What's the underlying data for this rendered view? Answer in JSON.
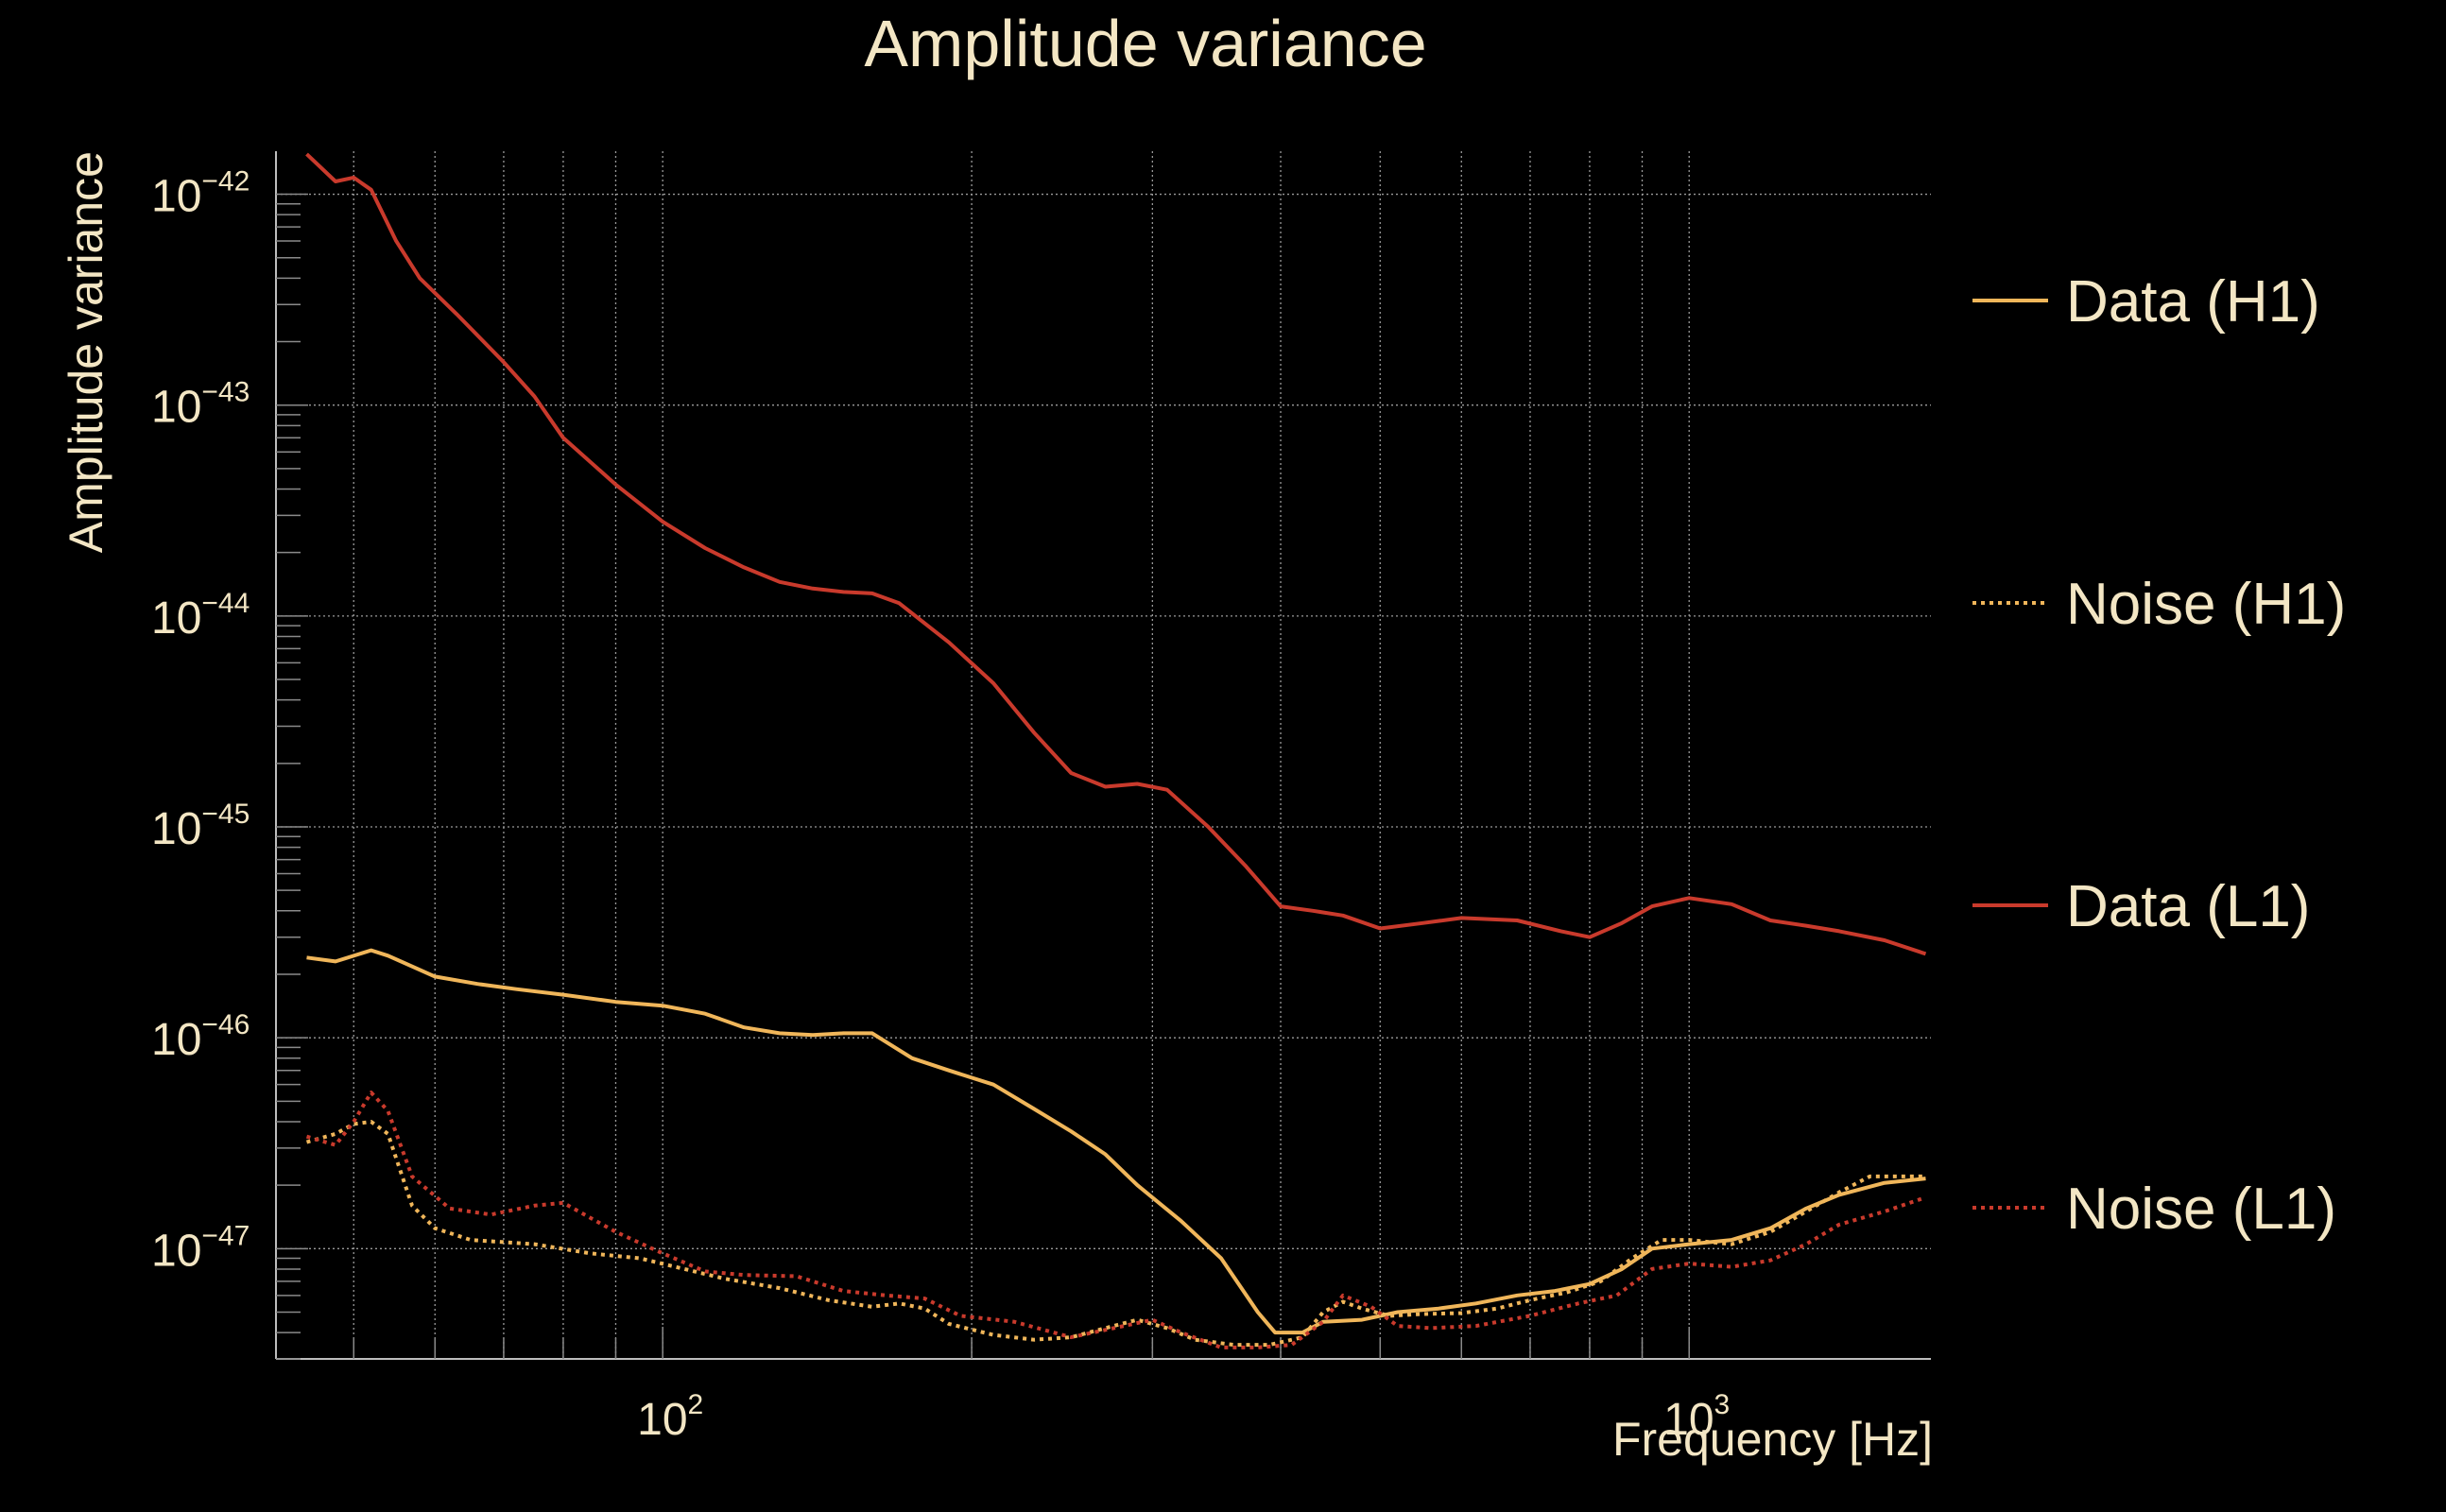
{
  "chart_data": {
    "type": "line",
    "title": "Amplitude variance",
    "xlabel": "Frequency [Hz]",
    "ylabel": "Amplitude variance",
    "x_scale": "log",
    "y_scale": "log",
    "xlim": [
      42,
      1720
    ],
    "ylim": [
      3e-48,
      1.6e-42
    ],
    "grid": true,
    "legend_placement": "right",
    "x_ticks": [
      {
        "base": "10",
        "exp": "2",
        "value": 100
      },
      {
        "base": "10",
        "exp": "3",
        "value": 1000
      }
    ],
    "y_ticks": [
      {
        "base": "10",
        "exp": "−42",
        "value": 1e-42
      },
      {
        "base": "10",
        "exp": "−43",
        "value": 1e-43
      },
      {
        "base": "10",
        "exp": "−44",
        "value": 1e-44
      },
      {
        "base": "10",
        "exp": "−45",
        "value": 1e-45
      },
      {
        "base": "10",
        "exp": "−46",
        "value": 1e-46
      },
      {
        "base": "10",
        "exp": "−47",
        "value": 1e-47
      }
    ],
    "series": [
      {
        "name": "Data (H1)",
        "color": "#f0b65a",
        "dash": "solid",
        "points": [
          [
            45,
            2.4e-46
          ],
          [
            48,
            2.3e-46
          ],
          [
            52,
            2.6e-46
          ],
          [
            54,
            2.45e-46
          ],
          [
            60,
            1.95e-46
          ],
          [
            66,
            1.8e-46
          ],
          [
            72,
            1.7e-46
          ],
          [
            80,
            1.6e-46
          ],
          [
            90,
            1.48e-46
          ],
          [
            100,
            1.42e-46
          ],
          [
            110,
            1.3e-46
          ],
          [
            120,
            1.12e-46
          ],
          [
            130,
            1.05e-46
          ],
          [
            140,
            1.03e-46
          ],
          [
            150,
            1.05e-46
          ],
          [
            160,
            1.05e-46
          ],
          [
            175,
            8e-47
          ],
          [
            190,
            7e-47
          ],
          [
            210,
            6e-47
          ],
          [
            230,
            4.6e-47
          ],
          [
            250,
            3.6e-47
          ],
          [
            270,
            2.8e-47
          ],
          [
            290,
            2e-47
          ],
          [
            320,
            1.35e-47
          ],
          [
            350,
            9e-48
          ],
          [
            380,
            5e-48
          ],
          [
            395,
            4e-48
          ],
          [
            420,
            4e-48
          ],
          [
            440,
            4.5e-48
          ],
          [
            480,
            4.6e-48
          ],
          [
            520,
            5e-48
          ],
          [
            570,
            5.2e-48
          ],
          [
            620,
            5.5e-48
          ],
          [
            680,
            6e-48
          ],
          [
            740,
            6.3e-48
          ],
          [
            800,
            6.8e-48
          ],
          [
            860,
            8e-48
          ],
          [
            920,
            1e-47
          ],
          [
            1000,
            1.05e-47
          ],
          [
            1100,
            1.1e-47
          ],
          [
            1200,
            1.25e-47
          ],
          [
            1300,
            1.55e-47
          ],
          [
            1400,
            1.8e-47
          ],
          [
            1550,
            2.05e-47
          ],
          [
            1700,
            2.15e-47
          ]
        ]
      },
      {
        "name": "Noise (H1)",
        "color": "#f0b65a",
        "dash": "dotted",
        "points": [
          [
            45,
            3.2e-47
          ],
          [
            48,
            3.5e-47
          ],
          [
            50,
            3.9e-47
          ],
          [
            52,
            4e-47
          ],
          [
            54,
            3.5e-47
          ],
          [
            57,
            1.6e-47
          ],
          [
            60,
            1.25e-47
          ],
          [
            65,
            1.1e-47
          ],
          [
            75,
            1.05e-47
          ],
          [
            85,
            9.5e-48
          ],
          [
            95,
            9e-48
          ],
          [
            105,
            8e-48
          ],
          [
            115,
            7.2e-48
          ],
          [
            130,
            6.5e-48
          ],
          [
            145,
            5.7e-48
          ],
          [
            160,
            5.3e-48
          ],
          [
            170,
            5.5e-48
          ],
          [
            180,
            5.2e-48
          ],
          [
            190,
            4.4e-48
          ],
          [
            210,
            3.9e-48
          ],
          [
            230,
            3.7e-48
          ],
          [
            250,
            3.8e-48
          ],
          [
            270,
            4.2e-48
          ],
          [
            290,
            4.6e-48
          ],
          [
            310,
            4.2e-48
          ],
          [
            330,
            3.7e-48
          ],
          [
            360,
            3.5e-48
          ],
          [
            390,
            3.5e-48
          ],
          [
            420,
            3.8e-48
          ],
          [
            440,
            5e-48
          ],
          [
            460,
            5.6e-48
          ],
          [
            480,
            5.2e-48
          ],
          [
            510,
            4.8e-48
          ],
          [
            550,
            4.9e-48
          ],
          [
            600,
            4.95e-48
          ],
          [
            650,
            5.2e-48
          ],
          [
            700,
            5.7e-48
          ],
          [
            760,
            6.2e-48
          ],
          [
            820,
            7e-48
          ],
          [
            880,
            9e-48
          ],
          [
            940,
            1.1e-47
          ],
          [
            1000,
            1.1e-47
          ],
          [
            1100,
            1.05e-47
          ],
          [
            1200,
            1.2e-47
          ],
          [
            1300,
            1.5e-47
          ],
          [
            1400,
            1.85e-47
          ],
          [
            1500,
            2.2e-47
          ],
          [
            1700,
            2.2e-47
          ]
        ]
      },
      {
        "name": "Data (L1)",
        "color": "#c93a2c",
        "dash": "solid",
        "points": [
          [
            45,
            1.55e-42
          ],
          [
            48,
            1.15e-42
          ],
          [
            50,
            1.2e-42
          ],
          [
            52,
            1.05e-42
          ],
          [
            55,
            6e-43
          ],
          [
            58,
            4e-43
          ],
          [
            63,
            2.7e-43
          ],
          [
            70,
            1.6e-43
          ],
          [
            75,
            1.1e-43
          ],
          [
            80,
            7e-44
          ],
          [
            90,
            4.2e-44
          ],
          [
            100,
            2.8e-44
          ],
          [
            110,
            2.1e-44
          ],
          [
            120,
            1.7e-44
          ],
          [
            130,
            1.45e-44
          ],
          [
            140,
            1.35e-44
          ],
          [
            150,
            1.3e-44
          ],
          [
            160,
            1.28e-44
          ],
          [
            170,
            1.15e-44
          ],
          [
            190,
            7.5e-45
          ],
          [
            210,
            4.8e-45
          ],
          [
            230,
            2.8e-45
          ],
          [
            250,
            1.8e-45
          ],
          [
            270,
            1.55e-45
          ],
          [
            290,
            1.6e-45
          ],
          [
            310,
            1.5e-45
          ],
          [
            340,
            1e-45
          ],
          [
            370,
            6.5e-46
          ],
          [
            400,
            4.2e-46
          ],
          [
            430,
            4e-46
          ],
          [
            460,
            3.8e-46
          ],
          [
            500,
            3.3e-46
          ],
          [
            550,
            3.5e-46
          ],
          [
            600,
            3.7e-46
          ],
          [
            680,
            3.6e-46
          ],
          [
            750,
            3.2e-46
          ],
          [
            800,
            3e-46
          ],
          [
            860,
            3.5e-46
          ],
          [
            920,
            4.2e-46
          ],
          [
            1000,
            4.6e-46
          ],
          [
            1100,
            4.3e-46
          ],
          [
            1200,
            3.6e-46
          ],
          [
            1300,
            3.4e-46
          ],
          [
            1400,
            3.2e-46
          ],
          [
            1550,
            2.9e-46
          ],
          [
            1700,
            2.5e-46
          ]
        ]
      },
      {
        "name": "Noise (L1)",
        "color": "#c93a2c",
        "dash": "dotted",
        "points": [
          [
            45,
            3.4e-47
          ],
          [
            48,
            3.1e-47
          ],
          [
            50,
            4e-47
          ],
          [
            52,
            5.5e-47
          ],
          [
            54,
            4.5e-47
          ],
          [
            57,
            2.2e-47
          ],
          [
            62,
            1.55e-47
          ],
          [
            68,
            1.45e-47
          ],
          [
            75,
            1.6e-47
          ],
          [
            80,
            1.65e-47
          ],
          [
            90,
            1.2e-47
          ],
          [
            100,
            9.5e-48
          ],
          [
            110,
            7.8e-48
          ],
          [
            120,
            7.5e-48
          ],
          [
            135,
            7.4e-48
          ],
          [
            150,
            6.3e-48
          ],
          [
            165,
            6e-48
          ],
          [
            180,
            5.8e-48
          ],
          [
            195,
            4.8e-48
          ],
          [
            220,
            4.5e-48
          ],
          [
            250,
            3.8e-48
          ],
          [
            275,
            4.2e-48
          ],
          [
            300,
            4.6e-48
          ],
          [
            320,
            4e-48
          ],
          [
            350,
            3.4e-48
          ],
          [
            380,
            3.4e-48
          ],
          [
            410,
            3.5e-48
          ],
          [
            440,
            4.5e-48
          ],
          [
            460,
            6e-48
          ],
          [
            490,
            5.3e-48
          ],
          [
            520,
            4.3e-48
          ],
          [
            560,
            4.2e-48
          ],
          [
            620,
            4.3e-48
          ],
          [
            700,
            4.8e-48
          ],
          [
            780,
            5.5e-48
          ],
          [
            850,
            6e-48
          ],
          [
            920,
            8e-48
          ],
          [
            1000,
            8.5e-48
          ],
          [
            1100,
            8.2e-48
          ],
          [
            1200,
            8.8e-48
          ],
          [
            1300,
            1.05e-47
          ],
          [
            1400,
            1.3e-47
          ],
          [
            1550,
            1.5e-47
          ],
          [
            1700,
            1.75e-47
          ]
        ]
      }
    ]
  }
}
